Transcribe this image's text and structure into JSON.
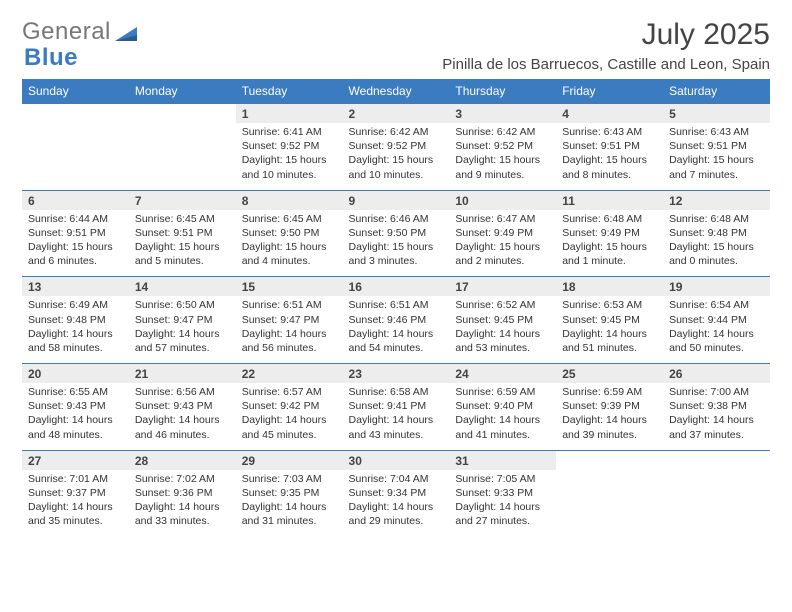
{
  "logo": {
    "text1": "General",
    "text2": "Blue"
  },
  "title": "July 2025",
  "location": "Pinilla de los Barruecos, Castille and Leon, Spain",
  "day_headers": [
    "Sunday",
    "Monday",
    "Tuesday",
    "Wednesday",
    "Thursday",
    "Friday",
    "Saturday"
  ],
  "colors": {
    "header_bg": "#3b7bbf",
    "header_text": "#ffffff",
    "daynum_bg": "#ededed",
    "row_border": "#3b7bbf",
    "body_text": "#333333",
    "logo_gray": "#777777",
    "logo_blue": "#3b7bbf"
  },
  "weeks": [
    [
      null,
      null,
      {
        "n": "1",
        "sunrise": "Sunrise: 6:41 AM",
        "sunset": "Sunset: 9:52 PM",
        "dl1": "Daylight: 15 hours",
        "dl2": "and 10 minutes."
      },
      {
        "n": "2",
        "sunrise": "Sunrise: 6:42 AM",
        "sunset": "Sunset: 9:52 PM",
        "dl1": "Daylight: 15 hours",
        "dl2": "and 10 minutes."
      },
      {
        "n": "3",
        "sunrise": "Sunrise: 6:42 AM",
        "sunset": "Sunset: 9:52 PM",
        "dl1": "Daylight: 15 hours",
        "dl2": "and 9 minutes."
      },
      {
        "n": "4",
        "sunrise": "Sunrise: 6:43 AM",
        "sunset": "Sunset: 9:51 PM",
        "dl1": "Daylight: 15 hours",
        "dl2": "and 8 minutes."
      },
      {
        "n": "5",
        "sunrise": "Sunrise: 6:43 AM",
        "sunset": "Sunset: 9:51 PM",
        "dl1": "Daylight: 15 hours",
        "dl2": "and 7 minutes."
      }
    ],
    [
      {
        "n": "6",
        "sunrise": "Sunrise: 6:44 AM",
        "sunset": "Sunset: 9:51 PM",
        "dl1": "Daylight: 15 hours",
        "dl2": "and 6 minutes."
      },
      {
        "n": "7",
        "sunrise": "Sunrise: 6:45 AM",
        "sunset": "Sunset: 9:51 PM",
        "dl1": "Daylight: 15 hours",
        "dl2": "and 5 minutes."
      },
      {
        "n": "8",
        "sunrise": "Sunrise: 6:45 AM",
        "sunset": "Sunset: 9:50 PM",
        "dl1": "Daylight: 15 hours",
        "dl2": "and 4 minutes."
      },
      {
        "n": "9",
        "sunrise": "Sunrise: 6:46 AM",
        "sunset": "Sunset: 9:50 PM",
        "dl1": "Daylight: 15 hours",
        "dl2": "and 3 minutes."
      },
      {
        "n": "10",
        "sunrise": "Sunrise: 6:47 AM",
        "sunset": "Sunset: 9:49 PM",
        "dl1": "Daylight: 15 hours",
        "dl2": "and 2 minutes."
      },
      {
        "n": "11",
        "sunrise": "Sunrise: 6:48 AM",
        "sunset": "Sunset: 9:49 PM",
        "dl1": "Daylight: 15 hours",
        "dl2": "and 1 minute."
      },
      {
        "n": "12",
        "sunrise": "Sunrise: 6:48 AM",
        "sunset": "Sunset: 9:48 PM",
        "dl1": "Daylight: 15 hours",
        "dl2": "and 0 minutes."
      }
    ],
    [
      {
        "n": "13",
        "sunrise": "Sunrise: 6:49 AM",
        "sunset": "Sunset: 9:48 PM",
        "dl1": "Daylight: 14 hours",
        "dl2": "and 58 minutes."
      },
      {
        "n": "14",
        "sunrise": "Sunrise: 6:50 AM",
        "sunset": "Sunset: 9:47 PM",
        "dl1": "Daylight: 14 hours",
        "dl2": "and 57 minutes."
      },
      {
        "n": "15",
        "sunrise": "Sunrise: 6:51 AM",
        "sunset": "Sunset: 9:47 PM",
        "dl1": "Daylight: 14 hours",
        "dl2": "and 56 minutes."
      },
      {
        "n": "16",
        "sunrise": "Sunrise: 6:51 AM",
        "sunset": "Sunset: 9:46 PM",
        "dl1": "Daylight: 14 hours",
        "dl2": "and 54 minutes."
      },
      {
        "n": "17",
        "sunrise": "Sunrise: 6:52 AM",
        "sunset": "Sunset: 9:45 PM",
        "dl1": "Daylight: 14 hours",
        "dl2": "and 53 minutes."
      },
      {
        "n": "18",
        "sunrise": "Sunrise: 6:53 AM",
        "sunset": "Sunset: 9:45 PM",
        "dl1": "Daylight: 14 hours",
        "dl2": "and 51 minutes."
      },
      {
        "n": "19",
        "sunrise": "Sunrise: 6:54 AM",
        "sunset": "Sunset: 9:44 PM",
        "dl1": "Daylight: 14 hours",
        "dl2": "and 50 minutes."
      }
    ],
    [
      {
        "n": "20",
        "sunrise": "Sunrise: 6:55 AM",
        "sunset": "Sunset: 9:43 PM",
        "dl1": "Daylight: 14 hours",
        "dl2": "and 48 minutes."
      },
      {
        "n": "21",
        "sunrise": "Sunrise: 6:56 AM",
        "sunset": "Sunset: 9:43 PM",
        "dl1": "Daylight: 14 hours",
        "dl2": "and 46 minutes."
      },
      {
        "n": "22",
        "sunrise": "Sunrise: 6:57 AM",
        "sunset": "Sunset: 9:42 PM",
        "dl1": "Daylight: 14 hours",
        "dl2": "and 45 minutes."
      },
      {
        "n": "23",
        "sunrise": "Sunrise: 6:58 AM",
        "sunset": "Sunset: 9:41 PM",
        "dl1": "Daylight: 14 hours",
        "dl2": "and 43 minutes."
      },
      {
        "n": "24",
        "sunrise": "Sunrise: 6:59 AM",
        "sunset": "Sunset: 9:40 PM",
        "dl1": "Daylight: 14 hours",
        "dl2": "and 41 minutes."
      },
      {
        "n": "25",
        "sunrise": "Sunrise: 6:59 AM",
        "sunset": "Sunset: 9:39 PM",
        "dl1": "Daylight: 14 hours",
        "dl2": "and 39 minutes."
      },
      {
        "n": "26",
        "sunrise": "Sunrise: 7:00 AM",
        "sunset": "Sunset: 9:38 PM",
        "dl1": "Daylight: 14 hours",
        "dl2": "and 37 minutes."
      }
    ],
    [
      {
        "n": "27",
        "sunrise": "Sunrise: 7:01 AM",
        "sunset": "Sunset: 9:37 PM",
        "dl1": "Daylight: 14 hours",
        "dl2": "and 35 minutes."
      },
      {
        "n": "28",
        "sunrise": "Sunrise: 7:02 AM",
        "sunset": "Sunset: 9:36 PM",
        "dl1": "Daylight: 14 hours",
        "dl2": "and 33 minutes."
      },
      {
        "n": "29",
        "sunrise": "Sunrise: 7:03 AM",
        "sunset": "Sunset: 9:35 PM",
        "dl1": "Daylight: 14 hours",
        "dl2": "and 31 minutes."
      },
      {
        "n": "30",
        "sunrise": "Sunrise: 7:04 AM",
        "sunset": "Sunset: 9:34 PM",
        "dl1": "Daylight: 14 hours",
        "dl2": "and 29 minutes."
      },
      {
        "n": "31",
        "sunrise": "Sunrise: 7:05 AM",
        "sunset": "Sunset: 9:33 PM",
        "dl1": "Daylight: 14 hours",
        "dl2": "and 27 minutes."
      },
      null,
      null
    ]
  ]
}
